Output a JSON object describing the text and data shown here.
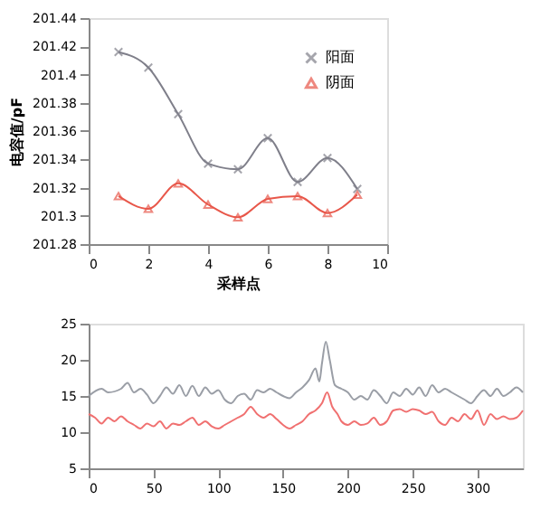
{
  "chart_data": [
    {
      "type": "line",
      "xlabel": "采样点",
      "ylabel": "电容值/pF",
      "xlim": [
        0,
        10
      ],
      "xticks": [
        0,
        2,
        4,
        6,
        8,
        10
      ],
      "ylim": [
        201.28,
        201.44
      ],
      "yticks": [
        201.28,
        201.3,
        201.32,
        201.34,
        201.36,
        201.38,
        201.4,
        201.42,
        201.44
      ],
      "grid": false,
      "legend": "top right",
      "x": [
        1,
        2,
        3,
        4,
        5,
        6,
        7,
        8,
        9
      ],
      "series": [
        {
          "name": "阳面",
          "color": "#7f7f8a",
          "marker": "cross",
          "values": [
            201.416,
            201.405,
            201.372,
            201.337,
            201.333,
            201.355,
            201.324,
            201.341,
            201.319
          ]
        },
        {
          "name": "阴面",
          "color": "#e8574a",
          "marker": "triangle",
          "values": [
            201.314,
            201.305,
            201.323,
            201.308,
            201.299,
            201.312,
            201.314,
            201.302,
            201.315
          ]
        }
      ]
    },
    {
      "type": "line",
      "xlim": [
        0,
        335
      ],
      "xticks": [
        0,
        50,
        100,
        150,
        200,
        250,
        300
      ],
      "ylim": [
        5,
        25
      ],
      "yticks": [
        5,
        10,
        15,
        20,
        25
      ],
      "grid": false,
      "legend": false,
      "series": [
        {
          "color": "#9a9ea6",
          "marker": "none",
          "x": [
            0,
            10,
            15,
            25,
            30,
            35,
            40,
            45,
            50,
            55,
            60,
            65,
            70,
            75,
            80,
            85,
            90,
            95,
            100,
            105,
            110,
            115,
            120,
            125,
            130,
            135,
            140,
            145,
            150,
            155,
            160,
            165,
            170,
            175,
            178,
            180,
            183,
            186,
            190,
            195,
            200,
            205,
            210,
            215,
            220,
            225,
            230,
            235,
            240,
            245,
            250,
            255,
            260,
            265,
            270,
            275,
            280,
            285,
            290,
            295,
            300,
            305,
            310,
            315,
            320,
            325,
            330,
            335
          ],
          "values": [
            15,
            16,
            15.5,
            16,
            16.8,
            15.5,
            16,
            15.2,
            14,
            15,
            16.2,
            15.3,
            16.5,
            15,
            16.4,
            15,
            16.2,
            15.3,
            15.8,
            14.5,
            14,
            15,
            15.3,
            14.5,
            15.8,
            15.5,
            16,
            15.5,
            15,
            14.7,
            15.5,
            16.2,
            17.2,
            18.8,
            17,
            19.5,
            22.5,
            20,
            16.5,
            16,
            15.5,
            14.5,
            15,
            14.5,
            15.8,
            15,
            14,
            15.5,
            15,
            16,
            15.2,
            16.2,
            15,
            16.5,
            15.5,
            16,
            15.5,
            15,
            14.5,
            14,
            15,
            15.8,
            15,
            16,
            15,
            15.5,
            16.2,
            15.5
          ]
        },
        {
          "color": "#f07070",
          "marker": "none",
          "x": [
            0,
            5,
            10,
            15,
            20,
            25,
            30,
            35,
            40,
            45,
            50,
            55,
            60,
            65,
            70,
            75,
            80,
            85,
            90,
            95,
            100,
            105,
            110,
            115,
            120,
            125,
            130,
            135,
            140,
            145,
            150,
            155,
            160,
            165,
            170,
            175,
            180,
            184,
            188,
            192,
            195,
            200,
            205,
            210,
            215,
            220,
            225,
            230,
            235,
            240,
            245,
            250,
            255,
            260,
            265,
            270,
            275,
            280,
            285,
            290,
            295,
            300,
            305,
            310,
            315,
            320,
            325,
            330,
            335
          ],
          "values": [
            12.5,
            12,
            11.2,
            12,
            11.5,
            12.2,
            11.5,
            11,
            10.5,
            11.2,
            10.8,
            11.5,
            10.5,
            11.2,
            11,
            11.5,
            12,
            11,
            11.5,
            10.8,
            10.5,
            11,
            11.5,
            12,
            12.5,
            13.5,
            12.5,
            12,
            12.5,
            11.8,
            11,
            10.5,
            11,
            11.5,
            12.5,
            13,
            14,
            15.5,
            13.5,
            12.5,
            11.5,
            11,
            11.5,
            11,
            11.2,
            12,
            11,
            11.5,
            13,
            13.2,
            12.8,
            13.2,
            13,
            12.5,
            12.8,
            11.5,
            11,
            12,
            11.5,
            12.5,
            11.8,
            13,
            11,
            12.5,
            11.8,
            12.2,
            11.8,
            12,
            13
          ]
        }
      ]
    }
  ]
}
